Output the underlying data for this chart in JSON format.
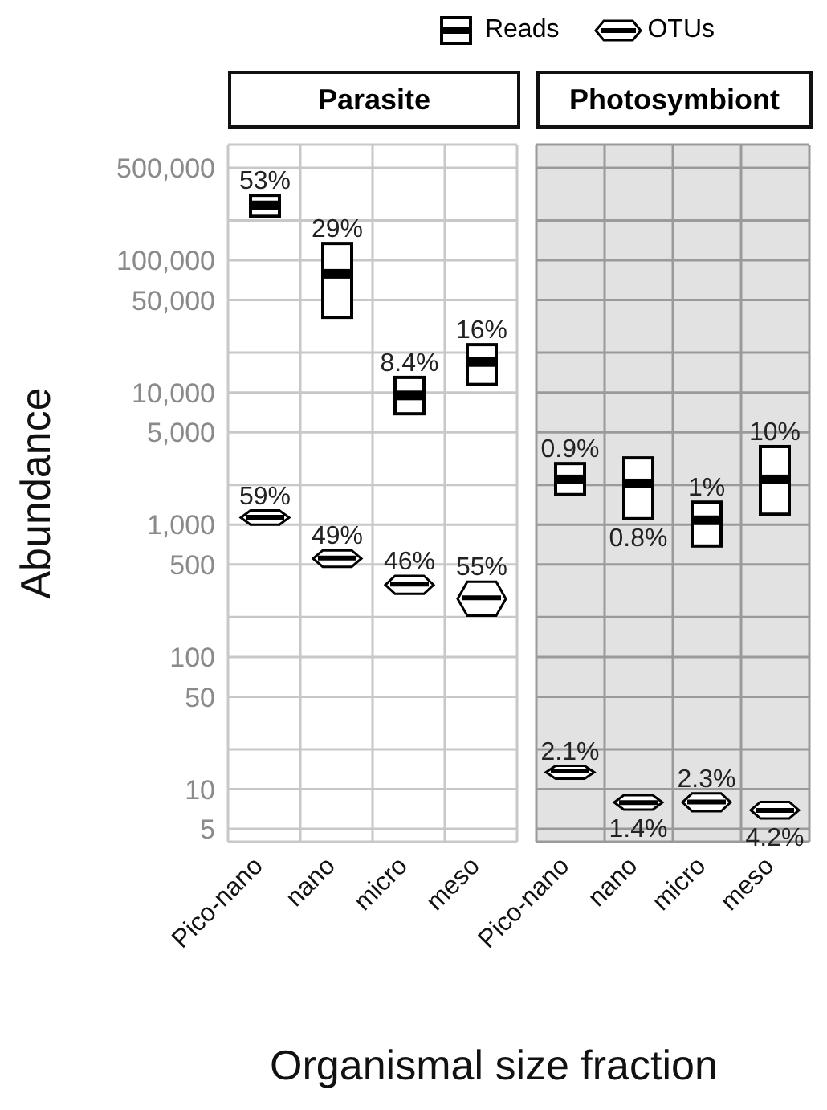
{
  "chart_data": [
    {
      "type": "box",
      "title": "Parasite",
      "ylabel": "Abundance",
      "xlabel": "Organismal size fraction",
      "categories": [
        "Pico-nano",
        "nano",
        "micro",
        "meso"
      ],
      "log": "y",
      "ylim": [
        4,
        750000
      ],
      "yticks": [
        {
          "value": 500000,
          "label": "500,000"
        },
        {
          "value": 200000,
          "label": null
        },
        {
          "value": 100000,
          "label": "100,000"
        },
        {
          "value": 50000,
          "label": "50,000"
        },
        {
          "value": 20000,
          "label": null
        },
        {
          "value": 10000,
          "label": "10,000"
        },
        {
          "value": 5000,
          "label": "5,000"
        },
        {
          "value": 2000,
          "label": null
        },
        {
          "value": 1000,
          "label": "1,000"
        },
        500,
        {
          "value": 200,
          "label": null
        },
        100,
        50,
        {
          "value": 20,
          "label": null
        },
        10,
        5
      ],
      "grid": true,
      "legend": "top right",
      "series": [
        {
          "name": "Reads",
          "color": "#000000",
          "boxes": [
            {
              "low": 215000,
              "q1": 215000,
              "median": 260000,
              "q3": 310000,
              "high": 310000
            },
            {
              "low": 37000,
              "q1": 37000,
              "median": 79000,
              "q3": 134000,
              "high": 134000
            },
            {
              "low": 6900,
              "q1": 6900,
              "median": 9500,
              "q3": 13000,
              "high": 13000
            },
            {
              "low": 11500,
              "q1": 11500,
              "median": 17000,
              "q3": 23000,
              "high": 23000
            }
          ],
          "value_labels": [
            "53%",
            "29%",
            "8.4%",
            "16%"
          ]
        },
        {
          "name": "OTUs",
          "color": "#000000",
          "boxes": [
            {
              "low": 1000,
              "q1": 1000,
              "median": 1140,
              "q3": 1280,
              "high": 1280
            },
            {
              "low": 480,
              "q1": 480,
              "median": 560,
              "q3": 640,
              "high": 640
            },
            {
              "low": 300,
              "q1": 300,
              "median": 355,
              "q3": 410,
              "high": 410
            },
            {
              "low": 205,
              "q1": 205,
              "median": 280,
              "q3": 370,
              "high": 370
            }
          ],
          "value_labels": [
            "59%",
            "49%",
            "46%",
            "55%"
          ]
        }
      ]
    },
    {
      "type": "box",
      "title": "Photosymbiont",
      "categories": [
        "Pico-nano",
        "nano",
        "micro",
        "meso"
      ],
      "log": "y",
      "ylim": [
        4,
        750000
      ],
      "tick_labels": "x",
      "yticks": [
        {
          "value": 500000,
          "label": null
        },
        {
          "value": 200000,
          "label": null
        },
        {
          "value": 100000,
          "label": null
        },
        {
          "value": 50000,
          "label": null
        },
        {
          "value": 20000,
          "label": null
        },
        {
          "value": 10000,
          "label": null
        },
        {
          "value": 5000,
          "label": null
        },
        {
          "value": 2000,
          "label": null
        },
        {
          "value": 1000,
          "label": null
        },
        {
          "value": 500,
          "label": null
        },
        {
          "value": 200,
          "label": null
        },
        {
          "value": 100,
          "label": null
        },
        {
          "value": 50,
          "label": null
        },
        {
          "value": 20,
          "label": null
        },
        {
          "value": 10,
          "label": null
        },
        {
          "value": 5,
          "label": null
        }
      ],
      "grid": true,
      "series": [
        {
          "color": "#000000",
          "boxes": [
            {
              "low": 1690,
              "q1": 1690,
              "median": 2200,
              "q3": 2900,
              "high": 2900
            },
            {
              "low": 1110,
              "q1": 1110,
              "median": 2050,
              "q3": 3200,
              "high": 3200
            },
            {
              "low": 690,
              "q1": 690,
              "median": 1080,
              "q3": 1480,
              "high": 1480
            },
            {
              "low": 1200,
              "q1": 1200,
              "median": 2200,
              "q3": 3900,
              "high": 3900
            }
          ],
          "value_labels": [
            "0.9%",
            "0.8%",
            "1%",
            "10%"
          ]
        },
        {
          "color": "#000000",
          "boxes": [
            {
              "low": 12,
              "q1": 12,
              "median": 13.7,
              "q3": 15,
              "high": 15
            },
            {
              "low": 7,
              "q1": 7,
              "median": 7.9,
              "q3": 9,
              "high": 9
            },
            {
              "low": 6.8,
              "q1": 6.8,
              "median": 8,
              "q3": 9.3,
              "high": 9.3
            },
            {
              "low": 6,
              "q1": 6,
              "median": 6.9,
              "q3": 8,
              "high": 8
            }
          ],
          "value_labels": [
            "2.1%",
            "1.4%",
            "2.3%",
            "4.2%"
          ]
        }
      ]
    }
  ]
}
